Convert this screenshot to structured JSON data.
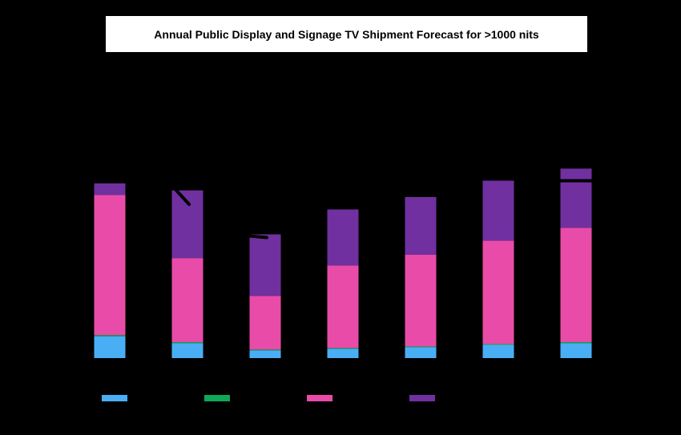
{
  "chart_data": {
    "type": "bar",
    "stacked": true,
    "title": "Annual Public Display and Signage TV Shipment Forecast for >1000 nits",
    "xlabel": "",
    "ylabel": "",
    "categories": [
      "",
      "",
      "",
      "",
      "",
      "",
      ""
    ],
    "ylim": [
      0,
      350
    ],
    "grid": false,
    "legend_position": "bottom",
    "series": [
      {
        "color": "#4aaef5",
        "values": [
          28,
          19,
          10,
          12,
          14,
          17,
          19
        ]
      },
      {
        "color": "#0fa85a",
        "values": [
          1.5,
          1.5,
          1,
          1,
          1,
          1,
          1.5
        ]
      },
      {
        "color": "#e84ca8",
        "values": [
          180,
          108,
          69,
          106,
          118,
          133,
          147
        ]
      },
      {
        "color": "#7030a0",
        "values": [
          15,
          87,
          79,
          72,
          74,
          77,
          76
        ]
      }
    ],
    "line_series": {
      "color": "#000000",
      "values": [
        null,
        210,
        157,
        null,
        null,
        null,
        230
      ]
    }
  }
}
